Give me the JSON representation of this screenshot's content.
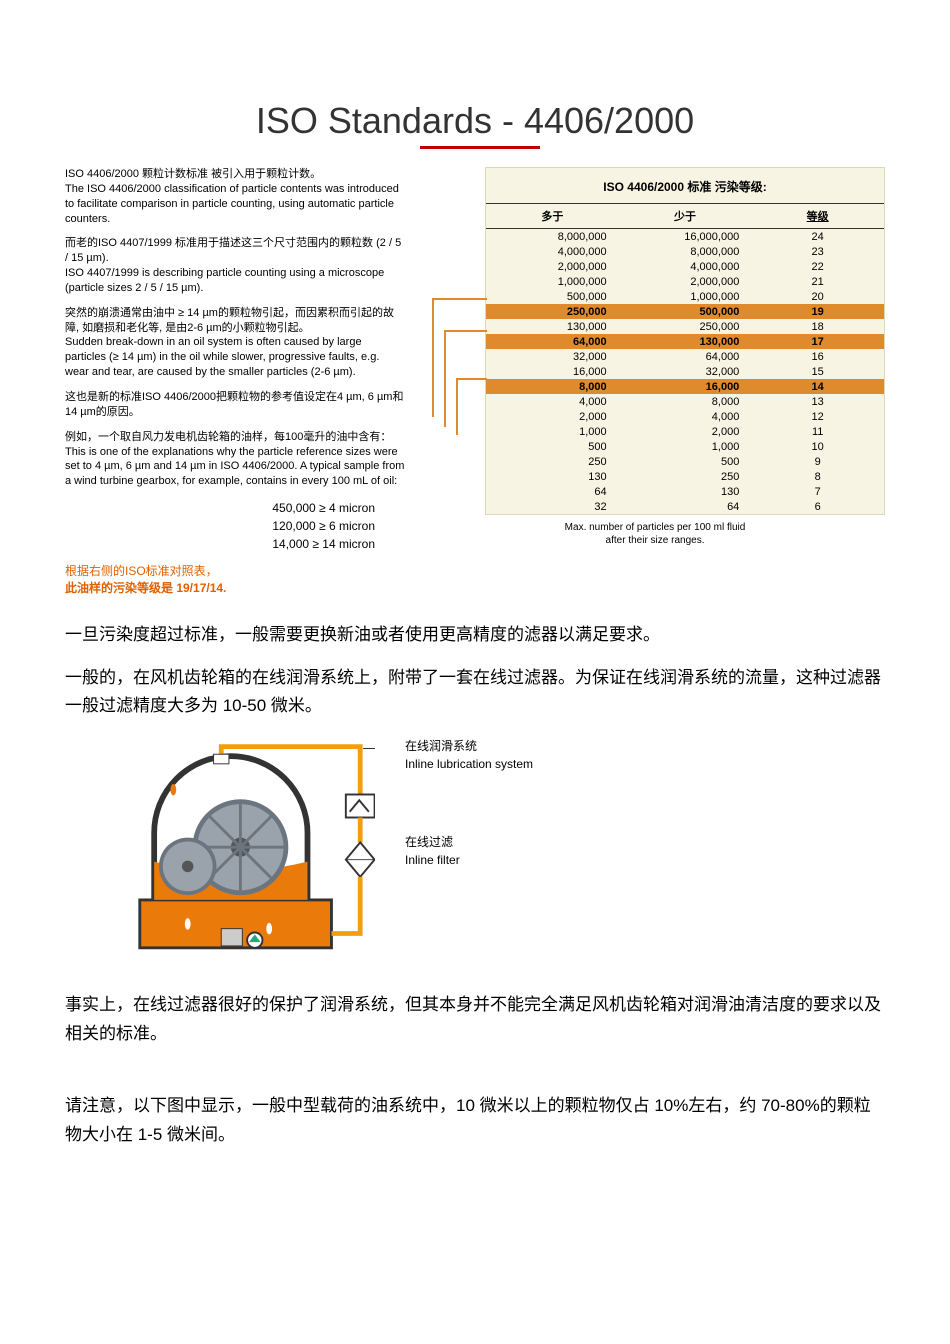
{
  "title": "ISO Standards - 4406/2000",
  "intro": {
    "p1_cn": "ISO 4406/2000 颗粒计数标准 被引入用于颗粒计数。",
    "p1_en": "The ISO 4406/2000 classification of particle contents was introduced to facilitate comparison in particle counting, using automatic particle counters.",
    "p2_cn": "而老的ISO 4407/1999 标准用于描述这三个尺寸范围内的颗粒数 (2 / 5 / 15 µm).",
    "p2_en": "ISO 4407/1999 is describing particle counting using a microscope (particle sizes 2 / 5 / 15 µm).",
    "p3_cn": "突然的崩溃通常由油中 ≥ 14 µm的颗粒物引起，而因累积而引起的故障, 如磨损和老化等, 是由2-6 µm的小颗粒物引起。",
    "p3_en": "Sudden break-down in an oil system is often caused by large particles (≥ 14 µm) in the oil while slower, progressive faults, e.g. wear and tear, are caused by the smaller particles (2-6 µm).",
    "p4_cn": "这也是新的标准ISO 4406/2000把颗粒物的参考值设定在4 µm, 6 µm和14 µm的原因。",
    "p5_cn": "例如，一个取自风力发电机齿轮箱的油样，每100毫升的油中含有：",
    "p5_en": "This is one of the explanations why the particle reference sizes were set to 4 µm, 6 µm and 14 µm in ISO 4406/2000. A typical sample from a wind turbine gearbox, for example, contains in every 100 mL of oil:"
  },
  "sample": {
    "r1": "450,000   ≥ 4 micron",
    "r2": "120,000   ≥ 6 micron",
    "r3": "14,000   ≥ 14 micron"
  },
  "red_note_l1": "根据右侧的ISO标准对照表，",
  "red_note_l2": "此油样的污染等级是 19/17/14.",
  "table": {
    "title": "ISO 4406/2000 标准 污染等级:",
    "headers": {
      "c1": "多于",
      "c2": "少于",
      "c3": "等级"
    },
    "rows": [
      {
        "a": "8,000,000",
        "b": "16,000,000",
        "c": "24",
        "hl": false
      },
      {
        "a": "4,000,000",
        "b": "8,000,000",
        "c": "23",
        "hl": false
      },
      {
        "a": "2,000,000",
        "b": "4,000,000",
        "c": "22",
        "hl": false
      },
      {
        "a": "1,000,000",
        "b": "2,000,000",
        "c": "21",
        "hl": false
      },
      {
        "a": "500,000",
        "b": "1,000,000",
        "c": "20",
        "hl": false
      },
      {
        "a": "250,000",
        "b": "500,000",
        "c": "19",
        "hl": true
      },
      {
        "a": "130,000",
        "b": "250,000",
        "c": "18",
        "hl": false
      },
      {
        "a": "64,000",
        "b": "130,000",
        "c": "17",
        "hl": true
      },
      {
        "a": "32,000",
        "b": "64,000",
        "c": "16",
        "hl": false
      },
      {
        "a": "16,000",
        "b": "32,000",
        "c": "15",
        "hl": false
      },
      {
        "a": "8,000",
        "b": "16,000",
        "c": "14",
        "hl": true
      },
      {
        "a": "4,000",
        "b": "8,000",
        "c": "13",
        "hl": false
      },
      {
        "a": "2,000",
        "b": "4,000",
        "c": "12",
        "hl": false
      },
      {
        "a": "1,000",
        "b": "2,000",
        "c": "11",
        "hl": false
      },
      {
        "a": "500",
        "b": "1,000",
        "c": "10",
        "hl": false
      },
      {
        "a": "250",
        "b": "500",
        "c": "9",
        "hl": false
      },
      {
        "a": "130",
        "b": "250",
        "c": "8",
        "hl": false
      },
      {
        "a": "64",
        "b": "130",
        "c": "7",
        "hl": false
      },
      {
        "a": "32",
        "b": "64",
        "c": "6",
        "hl": false
      }
    ],
    "caption_l1": "Max. number of particles per 100 ml fluid",
    "caption_l2": "after their size ranges.",
    "highlight_color": "#e08a2e",
    "bg_color": "#f7f4e3",
    "connector_color": "#e08a2e"
  },
  "body": {
    "p1": "一旦污染度超过标准，一般需要更换新油或者使用更高精度的滤器以满足要求。",
    "p2": "一般的，在风机齿轮箱的在线润滑系统上，附带了一套在线过滤器。为保证在线润滑系统的流量，这种过滤器一般过滤精度大多为 10-50 微米。",
    "p3": "事实上，在线过滤器很好的保护了润滑系统，但其本身并不能完全满足风机齿轮箱对润滑油清洁度的要求以及相关的标准。",
    "p4": "请注意，以下图中显示，一般中型载荷的油系统中，10 微米以上的颗粒物仅占 10%左右，约 70-80%的颗粒物大小在 1-5 微米间。"
  },
  "diagram": {
    "label1_cn": "在线润滑系统",
    "label1_en": "Inline lubrication system",
    "label2_cn": "在线过滤",
    "label2_en": "Inline filter",
    "colors": {
      "pipe": "#f59e0b",
      "oil": "#ea7a0a",
      "housing_stroke": "#333333",
      "gear_fill": "#9aa3ac",
      "gear_shade": "#6b7580"
    }
  }
}
